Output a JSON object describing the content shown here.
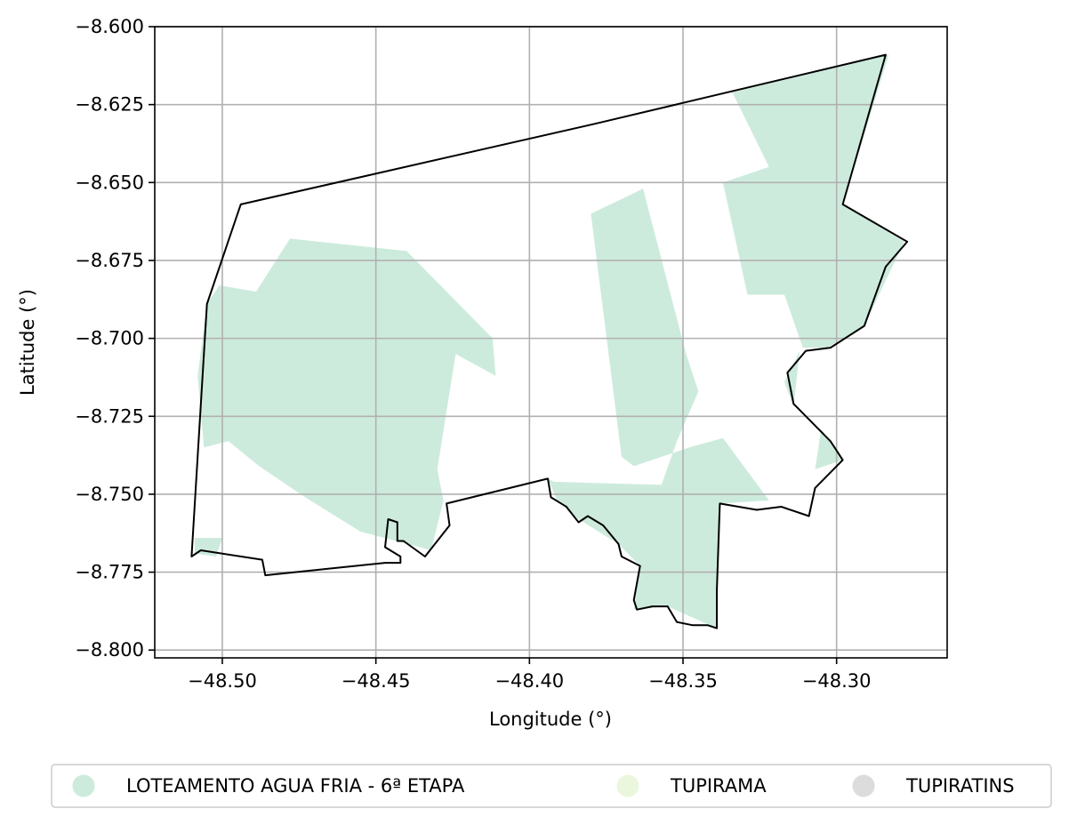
{
  "chart_data": {
    "type": "map",
    "xlabel": "Longitude (°)",
    "ylabel": "Latitude (°)",
    "xlim": [
      -48.522,
      -48.264
    ],
    "ylim": [
      -8.8025,
      -8.6
    ],
    "x_ticks": [
      "−48.50",
      "−48.45",
      "−48.40",
      "−48.35",
      "−48.30"
    ],
    "x_tick_values": [
      -48.5,
      -48.45,
      -48.4,
      -48.35,
      -48.3
    ],
    "y_ticks": [
      "−8.600",
      "−8.625",
      "−8.650",
      "−8.675",
      "−8.700",
      "−8.725",
      "−8.750",
      "−8.775",
      "−8.800"
    ],
    "y_tick_values": [
      -8.6,
      -8.625,
      -8.65,
      -8.675,
      -8.7,
      -8.725,
      -8.75,
      -8.775,
      -8.8
    ],
    "grid": true,
    "legend_position": "bottom-center",
    "legend": [
      {
        "label": "LOTEAMENTO AGUA FRIA - 6ª ETAPA",
        "color": "#cdebdd"
      },
      {
        "label": "TUPIRAMA",
        "color": "#ebf7dd"
      },
      {
        "label": "TUPIRATINS",
        "color": "#dcdcdc"
      }
    ],
    "boundary": [
      [
        -48.494,
        -8.657
      ],
      [
        -48.378,
        -8.631
      ],
      [
        -48.284,
        -8.609
      ],
      [
        -48.298,
        -8.657
      ],
      [
        -48.277,
        -8.669
      ],
      [
        -48.284,
        -8.677
      ],
      [
        -48.291,
        -8.696
      ],
      [
        -48.302,
        -8.703
      ],
      [
        -48.31,
        -8.704
      ],
      [
        -48.316,
        -8.711
      ],
      [
        -48.314,
        -8.721
      ],
      [
        -48.306,
        -8.729
      ],
      [
        -48.302,
        -8.733
      ],
      [
        -48.298,
        -8.739
      ],
      [
        -48.307,
        -8.748
      ],
      [
        -48.309,
        -8.757
      ],
      [
        -48.318,
        -8.754
      ],
      [
        -48.326,
        -8.755
      ],
      [
        -48.338,
        -8.753
      ],
      [
        -48.339,
        -8.781
      ],
      [
        -48.339,
        -8.793
      ],
      [
        -48.342,
        -8.792
      ],
      [
        -48.347,
        -8.792
      ],
      [
        -48.352,
        -8.791
      ],
      [
        -48.355,
        -8.786
      ],
      [
        -48.36,
        -8.786
      ],
      [
        -48.365,
        -8.787
      ],
      [
        -48.366,
        -8.784
      ],
      [
        -48.364,
        -8.773
      ],
      [
        -48.37,
        -8.77
      ],
      [
        -48.371,
        -8.766
      ],
      [
        -48.376,
        -8.76
      ],
      [
        -48.381,
        -8.757
      ],
      [
        -48.384,
        -8.759
      ],
      [
        -48.388,
        -8.754
      ],
      [
        -48.393,
        -8.751
      ],
      [
        -48.394,
        -8.745
      ],
      [
        -48.427,
        -8.753
      ],
      [
        -48.426,
        -8.76
      ],
      [
        -48.434,
        -8.77
      ],
      [
        -48.441,
        -8.765
      ],
      [
        -48.443,
        -8.765
      ],
      [
        -48.443,
        -8.759
      ],
      [
        -48.446,
        -8.758
      ],
      [
        -48.447,
        -8.767
      ],
      [
        -48.442,
        -8.77
      ],
      [
        -48.442,
        -8.772
      ],
      [
        -48.447,
        -8.772
      ],
      [
        -48.486,
        -8.776
      ],
      [
        -48.487,
        -8.771
      ],
      [
        -48.507,
        -8.768
      ],
      [
        -48.51,
        -8.77
      ],
      [
        -48.505,
        -8.689
      ]
    ],
    "regions": [
      {
        "label": "LOTEAMENTO AGUA FRIA - 6ª ETAPA",
        "polygons": [
          [
            [
              -48.334,
              -8.621
            ],
            [
              -48.283,
              -8.609
            ],
            [
              -48.298,
              -8.657
            ],
            [
              -48.278,
              -8.669
            ],
            [
              -48.291,
              -8.696
            ],
            [
              -48.303,
              -8.703
            ],
            [
              -48.311,
              -8.703
            ],
            [
              -48.317,
              -8.686
            ],
            [
              -48.329,
              -8.686
            ],
            [
              -48.337,
              -8.65
            ],
            [
              -48.322,
              -8.645
            ]
          ],
          [
            [
              -48.38,
              -8.66
            ],
            [
              -48.363,
              -8.652
            ],
            [
              -48.349,
              -8.705
            ],
            [
              -48.345,
              -8.717
            ],
            [
              -48.352,
              -8.733
            ],
            [
              -48.357,
              -8.747
            ],
            [
              -48.392,
              -8.746
            ],
            [
              -48.394,
              -8.745
            ],
            [
              -48.391,
              -8.752
            ],
            [
              -48.384,
              -8.758
            ],
            [
              -48.371,
              -8.766
            ],
            [
              -48.364,
              -8.773
            ],
            [
              -48.366,
              -8.787
            ],
            [
              -48.355,
              -8.786
            ],
            [
              -48.339,
              -8.793
            ],
            [
              -48.338,
              -8.753
            ],
            [
              -48.322,
              -8.752
            ],
            [
              -48.337,
              -8.732
            ],
            [
              -48.348,
              -8.735
            ],
            [
              -48.366,
              -8.741
            ],
            [
              -48.37,
              -8.738
            ]
          ],
          [
            [
              -48.478,
              -8.668
            ],
            [
              -48.44,
              -8.672
            ],
            [
              -48.412,
              -8.7
            ],
            [
              -48.411,
              -8.712
            ],
            [
              -48.424,
              -8.705
            ],
            [
              -48.43,
              -8.742
            ],
            [
              -48.428,
              -8.752
            ],
            [
              -48.432,
              -8.768
            ],
            [
              -48.455,
              -8.762
            ],
            [
              -48.473,
              -8.751
            ],
            [
              -48.488,
              -8.741
            ],
            [
              -48.498,
              -8.733
            ],
            [
              -48.506,
              -8.735
            ],
            [
              -48.508,
              -8.712
            ],
            [
              -48.505,
              -8.689
            ],
            [
              -48.501,
              -8.683
            ],
            [
              -48.489,
              -8.685
            ]
          ],
          [
            [
              -48.305,
              -8.729
            ],
            [
              -48.298,
              -8.739
            ],
            [
              -48.307,
              -8.742
            ]
          ],
          [
            [
              -48.317,
              -8.714
            ],
            [
              -48.312,
              -8.704
            ],
            [
              -48.314,
              -8.722
            ]
          ],
          [
            [
              -48.509,
              -8.764
            ],
            [
              -48.5,
              -8.764
            ],
            [
              -48.502,
              -8.77
            ],
            [
              -48.509,
              -8.769
            ]
          ]
        ]
      },
      {
        "label": "TUPIRAMA",
        "polygons": []
      },
      {
        "label": "TUPIRATINS",
        "polygons": []
      }
    ]
  }
}
